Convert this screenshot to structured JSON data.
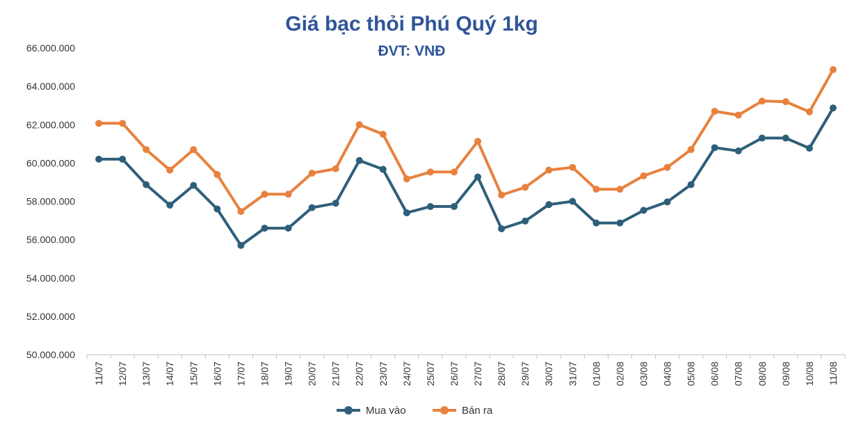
{
  "chart_data": {
    "type": "line",
    "title": "Giá bạc thỏi Phú Quý 1kg",
    "subtitle": "ĐVT: VNĐ",
    "xlabel": "",
    "ylabel": "",
    "ylim": [
      50000000,
      66000000
    ],
    "y_ticks": [
      50000000,
      52000000,
      54000000,
      56000000,
      58000000,
      60000000,
      62000000,
      64000000,
      66000000
    ],
    "y_tick_labels": [
      "50.000.000",
      "52.000.000",
      "54.000.000",
      "56.000.000",
      "58.000.000",
      "60.000.000",
      "62.000.000",
      "64.000.000",
      "66.000.000"
    ],
    "grid": false,
    "legend_position": "bottom",
    "categories": [
      "11/07",
      "12/07",
      "13/07",
      "14/07",
      "15/07",
      "16/07",
      "17/07",
      "18/07",
      "19/07",
      "20/07",
      "21/07",
      "22/07",
      "23/07",
      "24/07",
      "25/07",
      "26/07",
      "27/07",
      "28/07",
      "29/07",
      "30/07",
      "31/07",
      "01/08",
      "02/08",
      "03/08",
      "04/08",
      "05/08",
      "06/08",
      "07/08",
      "08/08",
      "09/08",
      "10/08",
      "11/08"
    ],
    "series": [
      {
        "name": "Mua vào",
        "color": "#2e5f7a",
        "values": [
          60200000,
          60200000,
          58870000,
          57800000,
          58830000,
          57600000,
          55700000,
          56600000,
          56600000,
          57670000,
          57900000,
          60130000,
          59670000,
          57400000,
          57730000,
          57730000,
          59270000,
          56570000,
          56970000,
          57830000,
          58000000,
          56870000,
          56870000,
          57530000,
          57970000,
          58870000,
          60800000,
          60630000,
          61300000,
          61300000,
          60770000,
          62870000
        ]
      },
      {
        "name": "Bán ra",
        "color": "#e8813d",
        "values": [
          62070000,
          62070000,
          60700000,
          59630000,
          60700000,
          59400000,
          57470000,
          58370000,
          58370000,
          59470000,
          59700000,
          62000000,
          61500000,
          59170000,
          59530000,
          59530000,
          61130000,
          58330000,
          58730000,
          59630000,
          59770000,
          58630000,
          58630000,
          59330000,
          59770000,
          60700000,
          62700000,
          62500000,
          63230000,
          63200000,
          62670000,
          64870000
        ]
      }
    ]
  }
}
